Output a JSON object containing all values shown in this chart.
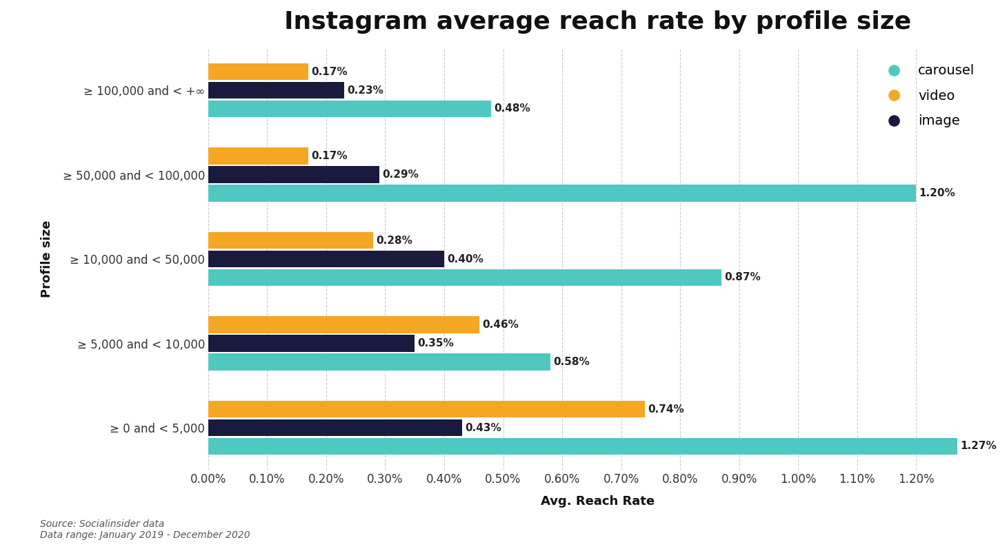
{
  "title": "Instagram average reach rate by profile size",
  "xlabel": "Avg. Reach Rate",
  "ylabel": "Profile size",
  "categories": [
    "≥ 0 and < 5,000",
    "≥ 5,000 and < 10,000",
    "≥ 10,000 and < 50,000",
    "≥ 50,000 and < 100,000",
    "≥ 100,000 and < +∞"
  ],
  "carousel": [
    1.27,
    0.58,
    0.87,
    1.2,
    0.48
  ],
  "video": [
    0.74,
    0.46,
    0.28,
    0.17,
    0.17
  ],
  "image": [
    0.43,
    0.35,
    0.4,
    0.29,
    0.23
  ],
  "carousel_color": "#4ec8c0",
  "video_color": "#f5a623",
  "image_color": "#1a1a3e",
  "background_color": "#ffffff",
  "title_fontsize": 26,
  "label_fontsize": 13,
  "tick_fontsize": 12,
  "bar_height": 0.22,
  "xlim": [
    0,
    1.32
  ],
  "xticks": [
    0.0,
    0.1,
    0.2,
    0.3,
    0.4,
    0.5,
    0.6,
    0.7,
    0.8,
    0.9,
    1.0,
    1.1,
    1.2
  ],
  "xtick_labels": [
    "0.00%",
    "0.10%",
    "0.20%",
    "0.30%",
    "0.40%",
    "0.50%",
    "0.60%",
    "0.70%",
    "0.80%",
    "0.90%",
    "1.00%",
    "1.10%",
    "1.20%"
  ],
  "source_text": "Source: Socialinsider data\nData range: January 2019 - December 2020",
  "legend_labels": [
    "carousel",
    "video",
    "image"
  ]
}
